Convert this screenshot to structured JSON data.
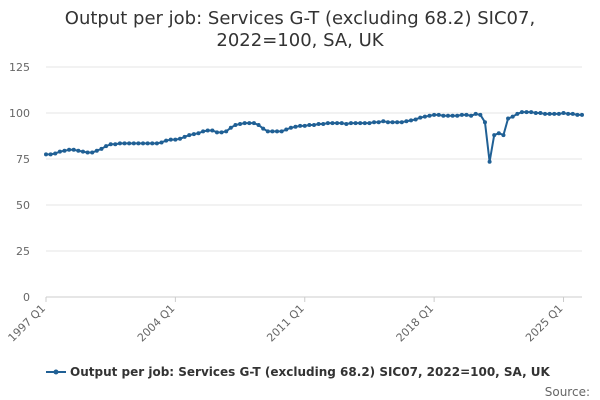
{
  "chart_data": {
    "type": "line",
    "title_lines": [
      "Output per job: Services G-T (excluding 68.2) SIC07,",
      "2022=100, SA, UK"
    ],
    "xlabel": "",
    "ylabel": "",
    "ylim": [
      0,
      125
    ],
    "yticks": [
      0,
      25,
      50,
      75,
      100,
      125
    ],
    "x_tick_labels": [
      "1997 Q1",
      "2004 Q1",
      "2011 Q1",
      "2018 Q1",
      "2025 Q1"
    ],
    "x_start_year": 1997,
    "grid": true,
    "legend_position": "bottom",
    "series_color": "#206095",
    "series": [
      {
        "name": "Output per job: Services G-T (excluding 68.2) SIC07, 2022=100, SA, UK",
        "values": [
          77.5,
          77.5,
          78,
          79,
          79.5,
          80,
          80,
          79.5,
          79,
          78.5,
          78.5,
          79.5,
          80.5,
          82,
          83,
          83,
          83.5,
          83.5,
          83.5,
          83.5,
          83.5,
          83.5,
          83.5,
          83.5,
          83.5,
          84,
          85,
          85.5,
          85.5,
          86,
          87,
          88,
          88.5,
          89,
          90,
          90.5,
          90.5,
          89.5,
          89.5,
          90,
          92,
          93.5,
          94,
          94.5,
          94.5,
          94.5,
          93.5,
          91.5,
          90,
          90,
          90,
          90,
          91,
          92,
          92.5,
          93,
          93,
          93.5,
          93.5,
          94,
          94,
          94.5,
          94.5,
          94.5,
          94.5,
          94,
          94.5,
          94.5,
          94.5,
          94.5,
          94.5,
          95,
          95,
          95.5,
          95,
          95,
          95,
          95,
          95.5,
          96,
          96.5,
          97.5,
          98,
          98.5,
          99,
          99,
          98.5,
          98.5,
          98.5,
          98.5,
          99,
          99,
          98.5,
          99.5,
          99,
          95,
          73.5,
          88,
          89,
          88,
          97,
          98,
          99.5,
          100.5,
          100.5,
          100.5,
          100,
          100,
          99.5,
          99.5,
          99.5,
          99.5,
          100,
          99.5,
          99.5,
          99,
          99
        ]
      }
    ]
  },
  "source_label": "Source:"
}
